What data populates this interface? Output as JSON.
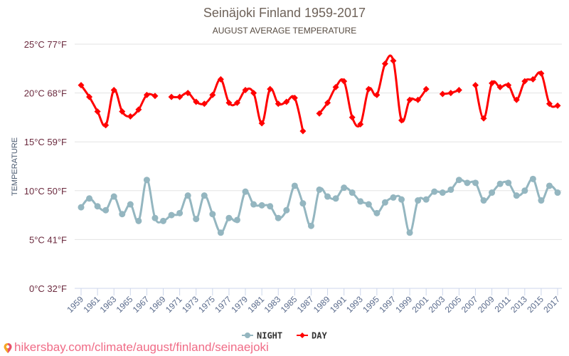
{
  "chart_data": {
    "type": "line",
    "title": "Seinäjoki Finland 1959-2017",
    "subtitle": "AUGUST AVERAGE TEMPERATURE",
    "xlabel": "",
    "ylabel": "TEMPERATURE",
    "ylim": [
      0,
      25
    ],
    "grid": true,
    "legend_position": "bottom-center",
    "y_ticks": [
      {
        "value": 0,
        "label": "0°C 32°F"
      },
      {
        "value": 5,
        "label": "5°C 41°F"
      },
      {
        "value": 10,
        "label": "10°C 50°F"
      },
      {
        "value": 15,
        "label": "15°C 59°F"
      },
      {
        "value": 20,
        "label": "20°C 68°F"
      },
      {
        "value": 25,
        "label": "25°C 77°F"
      }
    ],
    "x": [
      1959,
      1960,
      1961,
      1962,
      1963,
      1964,
      1965,
      1966,
      1967,
      1968,
      1969,
      1970,
      1971,
      1972,
      1973,
      1974,
      1975,
      1976,
      1977,
      1978,
      1979,
      1980,
      1981,
      1982,
      1983,
      1984,
      1985,
      1986,
      1987,
      1988,
      1989,
      1990,
      1991,
      1992,
      1993,
      1994,
      1995,
      1996,
      1997,
      1998,
      1999,
      2000,
      2001,
      2002,
      2003,
      2004,
      2005,
      2006,
      2007,
      2008,
      2009,
      2010,
      2011,
      2012,
      2013,
      2014,
      2015,
      2016,
      2017
    ],
    "x_tick_labels": [
      "1959",
      "1961",
      "1963",
      "1965",
      "1967",
      "1969",
      "1971",
      "1973",
      "1975",
      "1977",
      "1979",
      "1981",
      "1983",
      "1985",
      "1987",
      "1989",
      "1991",
      "1993",
      "1995",
      "1997",
      "1999",
      "2001",
      "2003",
      "2005",
      "2007",
      "2009",
      "2011",
      "2013",
      "2015",
      "2017"
    ],
    "series": [
      {
        "name": "NIGHT",
        "color": "#94b6c0",
        "marker": "circle",
        "values": [
          8.3,
          9.2,
          8.4,
          8.0,
          9.4,
          7.6,
          8.6,
          6.9,
          11.1,
          7.2,
          6.9,
          7.5,
          7.7,
          9.5,
          7.1,
          9.5,
          7.6,
          5.7,
          7.2,
          7.0,
          9.9,
          8.6,
          8.5,
          8.4,
          7.2,
          8.0,
          10.5,
          8.7,
          6.4,
          10.1,
          9.4,
          9.2,
          10.3,
          9.8,
          8.9,
          8.6,
          7.7,
          8.8,
          9.3,
          9.1,
          5.7,
          9.0,
          9.1,
          9.9,
          9.8,
          10.1,
          11.1,
          10.8,
          10.8,
          9.0,
          9.8,
          10.7,
          10.8,
          9.5,
          10.0,
          11.2,
          9.0,
          10.5,
          9.8
        ]
      },
      {
        "name": "DAY",
        "color": "#ff0000",
        "marker": "diamond",
        "values": [
          20.8,
          19.6,
          18.1,
          16.7,
          20.3,
          18.1,
          17.6,
          18.3,
          19.8,
          19.7,
          null,
          19.6,
          19.6,
          20.0,
          19.1,
          18.9,
          19.8,
          21.4,
          19.0,
          19.0,
          20.3,
          20.0,
          16.9,
          20.4,
          18.9,
          19.1,
          19.5,
          16.1,
          null,
          17.9,
          19.0,
          20.6,
          21.2,
          17.5,
          16.8,
          20.4,
          19.8,
          23.0,
          23.3,
          17.2,
          19.3,
          19.3,
          20.4,
          null,
          19.9,
          20.0,
          20.3,
          null,
          20.8,
          17.4,
          21.0,
          20.6,
          20.8,
          19.3,
          21.2,
          21.4,
          22.0,
          18.9,
          18.7
        ]
      }
    ]
  },
  "footer": {
    "icon": "map-pin-icon",
    "link_text": "hikersbay.com/climate/august/finland/seinaejoki"
  }
}
